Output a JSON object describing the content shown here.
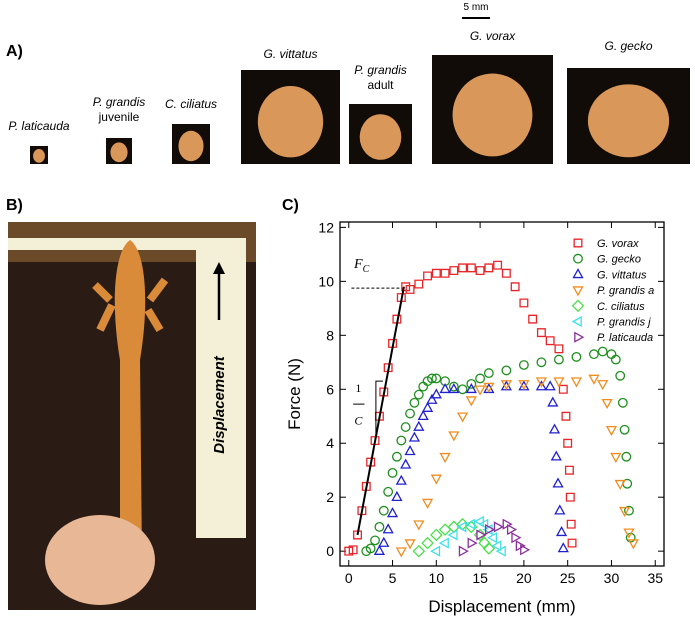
{
  "panel_a": {
    "label": "A)",
    "scale_bar": "5 mm",
    "specimens": [
      {
        "name": "P. laticauda"
      },
      {
        "name": "P. grandis",
        "note": "juvenile"
      },
      {
        "name": "C. ciliatus"
      },
      {
        "name": "G. vittatus"
      },
      {
        "name": "P. grandis",
        "note": "adult"
      },
      {
        "name": "G. vorax"
      },
      {
        "name": "G. gecko"
      }
    ]
  },
  "panel_b": {
    "label": "B)",
    "photo_text": "Displacement"
  },
  "panel_c": {
    "label": "C)"
  },
  "chart_data": {
    "type": "scatter",
    "x_label": "Displacement (mm)",
    "y_label": "Force (N)",
    "xlim": [
      -1,
      36
    ],
    "ylim": [
      -0.55,
      12.2
    ],
    "xticks": [
      0,
      5,
      10,
      15,
      20,
      25,
      30,
      35
    ],
    "yticks": [
      0,
      2,
      4,
      6,
      8,
      10,
      12
    ],
    "legend": "upper right",
    "annotations": [
      {
        "text": "F",
        "subscript": "C"
      },
      {
        "numerator": "1",
        "denominator": "C"
      }
    ],
    "series": [
      {
        "name": "G. vorax",
        "color": "#e8262a",
        "marker": "square",
        "x": [
          0,
          0.5,
          1,
          1.5,
          2,
          2.5,
          3,
          3.5,
          4,
          4.5,
          5,
          5.5,
          6,
          6.5,
          7,
          8,
          9,
          10,
          11,
          12,
          13,
          14,
          15,
          16,
          17,
          18,
          19,
          20,
          21,
          22,
          23,
          24,
          24.5,
          24.8,
          25,
          25.2,
          25.3,
          25.4,
          25.5
        ],
        "values": [
          0,
          0.05,
          0.6,
          1.5,
          2.4,
          3.3,
          4.1,
          5,
          5.9,
          6.8,
          7.7,
          8.6,
          9.4,
          9.8,
          9.7,
          9.9,
          10.2,
          10.3,
          10.3,
          10.4,
          10.5,
          10.5,
          10.4,
          10.5,
          10.6,
          10.3,
          9.8,
          9.2,
          8.6,
          8.1,
          7.8,
          7.5,
          6,
          5,
          4,
          3,
          2,
          1,
          0.3
        ]
      },
      {
        "name": "G. gecko",
        "color": "#1e8f1e",
        "marker": "circle",
        "x": [
          2,
          2.5,
          3,
          3.5,
          4,
          4.5,
          5,
          5.5,
          6,
          6.5,
          7,
          7.5,
          8,
          8.5,
          9,
          9.5,
          10,
          11,
          12,
          13,
          14,
          15,
          16,
          18,
          20,
          22,
          24,
          26,
          28,
          29,
          30,
          30.5,
          31,
          31.3,
          31.5,
          31.7,
          31.8,
          32,
          32.2
        ],
        "values": [
          0,
          0.1,
          0.4,
          0.9,
          1.5,
          2.2,
          2.9,
          3.5,
          4.1,
          4.6,
          5.1,
          5.5,
          5.8,
          6.1,
          6.3,
          6.4,
          6.4,
          6.3,
          6.1,
          6,
          6.2,
          6.4,
          6.6,
          6.7,
          6.9,
          7,
          7.1,
          7.2,
          7.3,
          7.4,
          7.3,
          7.1,
          6.5,
          5.5,
          4.5,
          3.5,
          2.5,
          1.5,
          0.5
        ]
      },
      {
        "name": "G. vittatus",
        "color": "#2020d0",
        "marker": "triangle-up",
        "x": [
          3.5,
          4,
          4.5,
          5,
          5.5,
          6,
          6.5,
          7,
          7.5,
          8,
          8.5,
          9,
          9.5,
          10,
          11,
          12,
          14,
          16,
          18,
          20,
          22,
          23,
          23.3,
          23.5,
          23.7,
          23.9,
          24.1,
          24.3,
          24.5
        ],
        "values": [
          0,
          0.3,
          0.8,
          1.4,
          2,
          2.6,
          3.2,
          3.7,
          4.2,
          4.6,
          5,
          5.3,
          5.6,
          5.8,
          6,
          6,
          6,
          6,
          6.1,
          6.1,
          6.1,
          6.1,
          5.5,
          4.5,
          3.5,
          2.5,
          1.5,
          0.7,
          0.1
        ]
      },
      {
        "name": "P. grandis a",
        "color": "#f08c1e",
        "marker": "triangle-down",
        "x": [
          6,
          7,
          8,
          9,
          10,
          11,
          12,
          13,
          14,
          15,
          16,
          18,
          20,
          22,
          24,
          26,
          28,
          29,
          29.5,
          30,
          30.5,
          31,
          31.5,
          32,
          32.5
        ],
        "values": [
          0,
          0.3,
          1,
          1.8,
          2.7,
          3.5,
          4.3,
          5,
          5.6,
          6,
          6.1,
          6.2,
          6.2,
          6.3,
          6.3,
          6.3,
          6.4,
          6.2,
          5.5,
          4.5,
          3.5,
          2.5,
          1.5,
          0.7,
          0.3
        ]
      },
      {
        "name": "C. ciliatus",
        "color": "#4ce04c",
        "marker": "diamond",
        "x": [
          8,
          9,
          10,
          11,
          12,
          13,
          14,
          15,
          15.5,
          16
        ],
        "values": [
          0,
          0.3,
          0.6,
          0.8,
          0.9,
          1,
          0.9,
          0.6,
          0.3,
          0.1
        ]
      },
      {
        "name": "P. grandis j",
        "color": "#40e0e8",
        "marker": "triangle-left",
        "x": [
          10,
          11,
          12,
          13,
          14,
          15,
          15.5,
          16,
          16.5,
          17,
          17.5
        ],
        "values": [
          0,
          0.3,
          0.6,
          0.9,
          1,
          1.1,
          1,
          0.8,
          0.5,
          0.2,
          0
        ]
      },
      {
        "name": "P. laticauda",
        "color": "#8b2f9e",
        "marker": "triangle-right",
        "x": [
          13,
          14,
          15,
          16,
          17,
          18,
          18.5,
          19,
          19.5,
          20
        ],
        "values": [
          0,
          0.3,
          0.6,
          0.8,
          0.9,
          1,
          0.8,
          0.5,
          0.2,
          0.05
        ]
      }
    ]
  }
}
